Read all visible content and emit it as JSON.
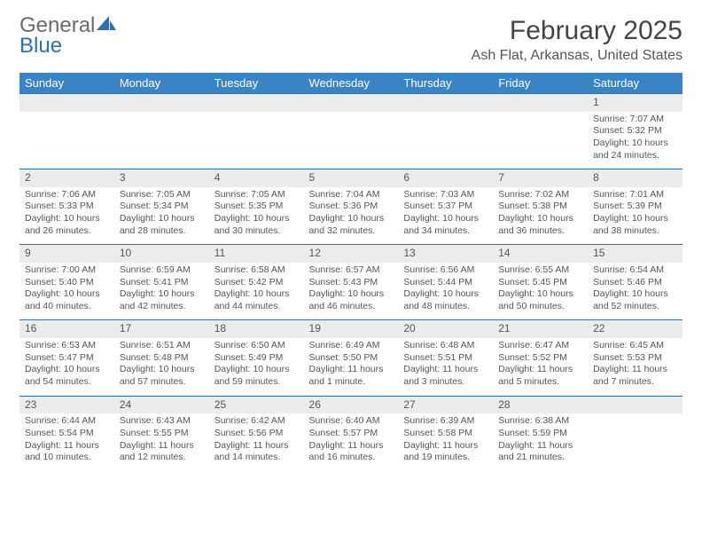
{
  "brand": {
    "word1": "General",
    "word2": "Blue"
  },
  "title": "February 2025",
  "location": "Ash Flat, Arkansas, United States",
  "colors": {
    "header_bg": "#3b84c4",
    "header_text": "#ffffff",
    "daynum_bg": "#ececec",
    "row_border": "#3b6fa0",
    "body_text": "#555555",
    "brand_gray": "#6a6a6a",
    "brand_blue": "#2f6fb0"
  },
  "weekdays": [
    "Sunday",
    "Monday",
    "Tuesday",
    "Wednesday",
    "Thursday",
    "Friday",
    "Saturday"
  ],
  "weeks": [
    {
      "nums": [
        "",
        "",
        "",
        "",
        "",
        "",
        "1"
      ],
      "cells": [
        "",
        "",
        "",
        "",
        "",
        "",
        "Sunrise: 7:07 AM\nSunset: 5:32 PM\nDaylight: 10 hours and 24 minutes."
      ]
    },
    {
      "nums": [
        "2",
        "3",
        "4",
        "5",
        "6",
        "7",
        "8"
      ],
      "cells": [
        "Sunrise: 7:06 AM\nSunset: 5:33 PM\nDaylight: 10 hours and 26 minutes.",
        "Sunrise: 7:05 AM\nSunset: 5:34 PM\nDaylight: 10 hours and 28 minutes.",
        "Sunrise: 7:05 AM\nSunset: 5:35 PM\nDaylight: 10 hours and 30 minutes.",
        "Sunrise: 7:04 AM\nSunset: 5:36 PM\nDaylight: 10 hours and 32 minutes.",
        "Sunrise: 7:03 AM\nSunset: 5:37 PM\nDaylight: 10 hours and 34 minutes.",
        "Sunrise: 7:02 AM\nSunset: 5:38 PM\nDaylight: 10 hours and 36 minutes.",
        "Sunrise: 7:01 AM\nSunset: 5:39 PM\nDaylight: 10 hours and 38 minutes."
      ]
    },
    {
      "nums": [
        "9",
        "10",
        "11",
        "12",
        "13",
        "14",
        "15"
      ],
      "cells": [
        "Sunrise: 7:00 AM\nSunset: 5:40 PM\nDaylight: 10 hours and 40 minutes.",
        "Sunrise: 6:59 AM\nSunset: 5:41 PM\nDaylight: 10 hours and 42 minutes.",
        "Sunrise: 6:58 AM\nSunset: 5:42 PM\nDaylight: 10 hours and 44 minutes.",
        "Sunrise: 6:57 AM\nSunset: 5:43 PM\nDaylight: 10 hours and 46 minutes.",
        "Sunrise: 6:56 AM\nSunset: 5:44 PM\nDaylight: 10 hours and 48 minutes.",
        "Sunrise: 6:55 AM\nSunset: 5:45 PM\nDaylight: 10 hours and 50 minutes.",
        "Sunrise: 6:54 AM\nSunset: 5:46 PM\nDaylight: 10 hours and 52 minutes."
      ]
    },
    {
      "nums": [
        "16",
        "17",
        "18",
        "19",
        "20",
        "21",
        "22"
      ],
      "cells": [
        "Sunrise: 6:53 AM\nSunset: 5:47 PM\nDaylight: 10 hours and 54 minutes.",
        "Sunrise: 6:51 AM\nSunset: 5:48 PM\nDaylight: 10 hours and 57 minutes.",
        "Sunrise: 6:50 AM\nSunset: 5:49 PM\nDaylight: 10 hours and 59 minutes.",
        "Sunrise: 6:49 AM\nSunset: 5:50 PM\nDaylight: 11 hours and 1 minute.",
        "Sunrise: 6:48 AM\nSunset: 5:51 PM\nDaylight: 11 hours and 3 minutes.",
        "Sunrise: 6:47 AM\nSunset: 5:52 PM\nDaylight: 11 hours and 5 minutes.",
        "Sunrise: 6:45 AM\nSunset: 5:53 PM\nDaylight: 11 hours and 7 minutes."
      ]
    },
    {
      "nums": [
        "23",
        "24",
        "25",
        "26",
        "27",
        "28",
        ""
      ],
      "cells": [
        "Sunrise: 6:44 AM\nSunset: 5:54 PM\nDaylight: 11 hours and 10 minutes.",
        "Sunrise: 6:43 AM\nSunset: 5:55 PM\nDaylight: 11 hours and 12 minutes.",
        "Sunrise: 6:42 AM\nSunset: 5:56 PM\nDaylight: 11 hours and 14 minutes.",
        "Sunrise: 6:40 AM\nSunset: 5:57 PM\nDaylight: 11 hours and 16 minutes.",
        "Sunrise: 6:39 AM\nSunset: 5:58 PM\nDaylight: 11 hours and 19 minutes.",
        "Sunrise: 6:38 AM\nSunset: 5:59 PM\nDaylight: 11 hours and 21 minutes.",
        ""
      ]
    }
  ]
}
